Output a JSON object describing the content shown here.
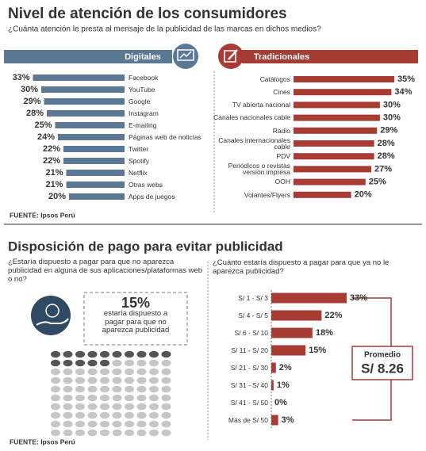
{
  "chart_data": [
    {
      "type": "bar",
      "title": "Nivel de atención de los consumidores",
      "subtitle": "¿Cuánta atención le presta al mensaje de la publicidad de las marcas en dichos medios?",
      "panel": "Digitales",
      "color": "#5b7894",
      "categories": [
        "Facebook",
        "YouTube",
        "Google",
        "Instagram",
        "E-mailing",
        "Páginas web de noticias",
        "Twitter",
        "Spotify",
        "Netflix",
        "Otras webs",
        "Apps de juegos"
      ],
      "values": [
        33,
        30,
        29,
        28,
        25,
        24,
        22,
        22,
        21,
        21,
        20
      ],
      "value_labels": [
        "33%",
        "30%",
        "29%",
        "28%",
        "25%",
        "24%",
        "22%",
        "22%",
        "21%",
        "21%",
        "20%"
      ],
      "source": "FUENTE: Ipsos Perú"
    },
    {
      "type": "bar",
      "panel": "Tradicionales",
      "color": "#a63c33",
      "categories": [
        "Catálogos",
        "Cines",
        "TV abierta nacional",
        "Canales nacionales cable",
        "Radio",
        "Canales internacionales cable",
        "PDV",
        "Periódicos o revistas versión impresa",
        "OOH",
        "Volantes/Flyers"
      ],
      "values": [
        35,
        34,
        30,
        30,
        29,
        28,
        28,
        27,
        25,
        20
      ],
      "value_labels": [
        "35%",
        "34%",
        "30%",
        "30%",
        "29%",
        "28%",
        "28%",
        "27%",
        "25%",
        "20%"
      ]
    },
    {
      "type": "waffle",
      "title": "Disposición de pago para evitar publicidad",
      "subtitle": "¿Estaría dispuesto a pagar para que no aparezca publicidad en alguna de sus aplicaciones/plataformas web o no?",
      "values": [
        15
      ],
      "value_labels": [
        "15%"
      ],
      "color": "#555555",
      "background_color": "#c6c6c6",
      "annotation": "estaría dispuesto a pagar para que no aparezca publicidad",
      "source": "FUENTE: Ipsos Perú"
    },
    {
      "type": "bar",
      "subtitle": "¿Cuánto estaría dispuesto a pagar para que ya no le aparezca publicidad?",
      "color": "#a63c33",
      "categories": [
        "S/ 1 - S/ 3",
        "S/ 4 - S/ 5",
        "S/ 6 - S/ 10",
        "S/ 11 - S/ 20",
        "S/ 21 - S/ 30",
        "S/ 31 - S/ 40",
        "S/ 41 - S/ 50",
        "Más de S/ 50"
      ],
      "values": [
        33,
        22,
        18,
        15,
        2,
        1,
        0,
        3
      ],
      "value_labels": [
        "33%",
        "22%",
        "18%",
        "15%",
        "2%",
        "1%",
        "0%",
        "3%"
      ],
      "annotation_title": "Promedio",
      "annotation_value": "S/ 8.26"
    }
  ]
}
